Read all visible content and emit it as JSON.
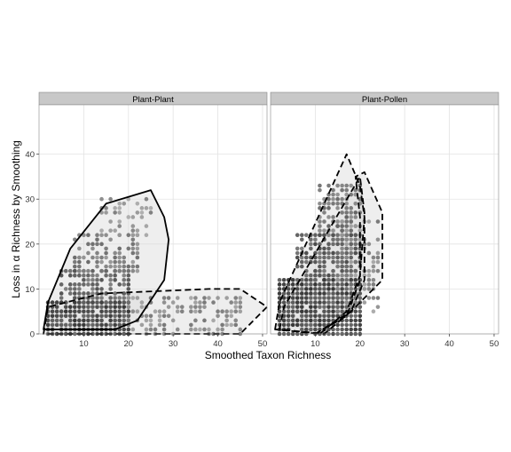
{
  "chart_data": {
    "type": "scatter",
    "title": "",
    "xlabel": "Smoothed Taxon Richness",
    "ylabel": "Loss in α Richness by Smoothing",
    "xlim": [
      0,
      51
    ],
    "ylim": [
      0,
      51
    ],
    "x_ticks": [
      10,
      20,
      30,
      40,
      50
    ],
    "y_ticks": [
      0,
      10,
      20,
      30,
      40
    ],
    "grid": true,
    "legend": "none",
    "colors": {
      "strip_fill": "#c8c8c8",
      "grid": "#e3e3e3",
      "points_dark": "#111111",
      "points_light": "#bdbdbd",
      "hull_stroke": "#000000",
      "hull_fill": "#d9d9d9"
    },
    "panels": [
      {
        "strip_label": "Plant-Plant",
        "hull_solid": [
          [
            1,
            1
          ],
          [
            2,
            7
          ],
          [
            7,
            19
          ],
          [
            15,
            29
          ],
          [
            25,
            32
          ],
          [
            28,
            26
          ],
          [
            29,
            21
          ],
          [
            28,
            12
          ],
          [
            22,
            3
          ],
          [
            17,
            1
          ]
        ],
        "hull_dashed": [
          [
            1,
            0
          ],
          [
            2,
            6
          ],
          [
            14,
            9
          ],
          [
            38,
            10
          ],
          [
            45,
            10
          ],
          [
            51,
            6
          ],
          [
            45,
            0
          ]
        ],
        "dense_regions": [
          {
            "x": [
              2,
              20
            ],
            "y": [
              0,
              7
            ],
            "density": 0.95
          },
          {
            "x": [
              5,
              20
            ],
            "y": [
              7,
              14
            ],
            "density": 0.75
          },
          {
            "x": [
              8,
              22
            ],
            "y": [
              14,
              22
            ],
            "density": 0.55
          },
          {
            "x": [
              14,
              25
            ],
            "y": [
              22,
              30
            ],
            "density": 0.4
          },
          {
            "x": [
              20,
              45
            ],
            "y": [
              0,
              8
            ],
            "density": 0.45
          }
        ]
      },
      {
        "strip_label": "Plant-Pollen",
        "hull_dashed_outer": [
          [
            1,
            1
          ],
          [
            2,
            7
          ],
          [
            17,
            40
          ],
          [
            20,
            33
          ],
          [
            21,
            26
          ],
          [
            20,
            13
          ],
          [
            17,
            5
          ],
          [
            11,
            0
          ]
        ],
        "hull_dashed_middle": [
          [
            2,
            1
          ],
          [
            3,
            6
          ],
          [
            20,
            35
          ],
          [
            21,
            27
          ],
          [
            21,
            12
          ],
          [
            18,
            5
          ],
          [
            12,
            0
          ]
        ],
        "hull_dashed_right": [
          [
            10,
            0
          ],
          [
            18,
            5
          ],
          [
            23,
            10
          ],
          [
            25,
            12
          ],
          [
            25,
            27
          ],
          [
            21,
            36
          ],
          [
            19,
            35
          ],
          [
            20,
            26
          ],
          [
            20,
            12
          ],
          [
            17,
            4
          ]
        ],
        "dense_regions": [
          {
            "x": [
              2,
              20
            ],
            "y": [
              0,
              12
            ],
            "density": 0.95
          },
          {
            "x": [
              6,
              20
            ],
            "y": [
              12,
              22
            ],
            "density": 0.8
          },
          {
            "x": [
              11,
              20
            ],
            "y": [
              22,
              33
            ],
            "density": 0.6
          },
          {
            "x": [
              15,
              24
            ],
            "y": [
              5,
              25
            ],
            "density": 0.45
          }
        ]
      }
    ]
  }
}
